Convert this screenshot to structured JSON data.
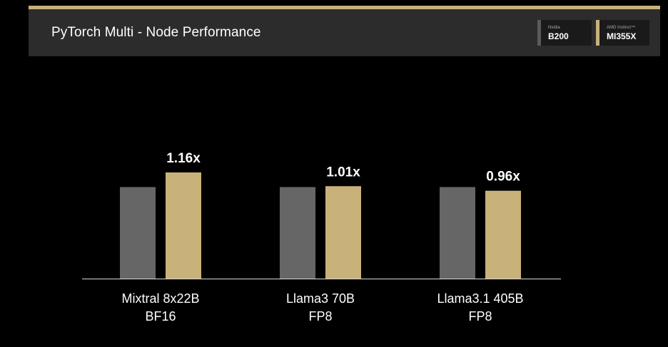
{
  "header": {
    "title": "PyTorch Multi - Node Performance",
    "legend": [
      {
        "vendor": "Nvidia",
        "product": "B200",
        "color": "#5a5a5a"
      },
      {
        "vendor": "AMD Instinct™",
        "product": "MI355X",
        "color": "#c8b27a"
      }
    ]
  },
  "chart_data": {
    "type": "bar",
    "categories": [
      {
        "line1": "Mixtral 8x22B",
        "line2": "BF16"
      },
      {
        "line1": "Llama3 70B",
        "line2": "FP8"
      },
      {
        "line1": "Llama3.1 405B",
        "line2": "FP8"
      }
    ],
    "series": [
      {
        "name": "B200",
        "values": [
          1.0,
          1.0,
          1.0
        ],
        "color": "#666666"
      },
      {
        "name": "MI355X",
        "values": [
          1.16,
          1.01,
          0.96
        ],
        "color": "#c8b27a"
      }
    ],
    "data_labels": [
      "1.16x",
      "1.01x",
      "0.96x"
    ],
    "ylim": [
      0,
      1.16
    ],
    "grid": false
  }
}
